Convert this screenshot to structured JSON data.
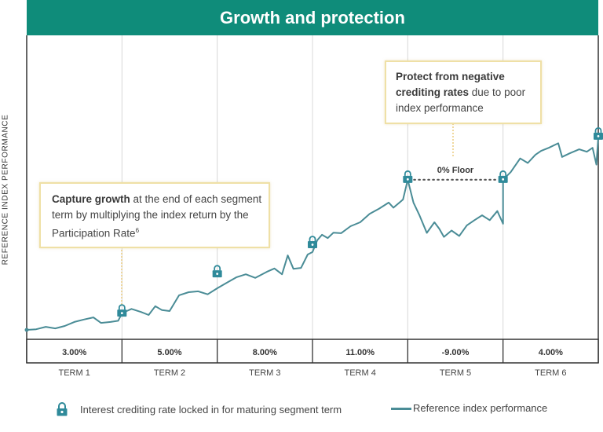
{
  "chart_data": {
    "type": "line",
    "title": "Growth and protection",
    "ylabel": "REFERENCE INDEX PERFORMANCE",
    "xlabel": "",
    "xlim": [
      0,
      6
    ],
    "ylim": [
      0,
      100
    ],
    "grid": "vertical lines at term boundaries",
    "terms": [
      {
        "label": "TERM 1",
        "rate": "3.00%"
      },
      {
        "label": "TERM 2",
        "rate": "5.00%"
      },
      {
        "label": "TERM 3",
        "rate": "8.00%"
      },
      {
        "label": "TERM 4",
        "rate": "11.00%"
      },
      {
        "label": "TERM 5",
        "rate": "-9.00%"
      },
      {
        "label": "TERM 6",
        "rate": "4.00%"
      }
    ],
    "series": [
      {
        "name": "Reference index performance",
        "color": "#4a8c96",
        "points": [
          [
            0.0,
            3.1
          ],
          [
            0.1,
            3.3
          ],
          [
            0.2,
            4.1
          ],
          [
            0.3,
            3.6
          ],
          [
            0.4,
            4.4
          ],
          [
            0.5,
            5.7
          ],
          [
            0.6,
            6.5
          ],
          [
            0.7,
            7.2
          ],
          [
            0.78,
            5.4
          ],
          [
            0.88,
            5.7
          ],
          [
            0.96,
            6.1
          ],
          [
            1.0,
            8.5
          ],
          [
            1.05,
            9.3
          ],
          [
            1.1,
            10.0
          ],
          [
            1.2,
            9.0
          ],
          [
            1.28,
            8.0
          ],
          [
            1.35,
            10.9
          ],
          [
            1.42,
            9.6
          ],
          [
            1.5,
            9.3
          ],
          [
            1.6,
            14.5
          ],
          [
            1.7,
            15.5
          ],
          [
            1.8,
            15.8
          ],
          [
            1.9,
            14.8
          ],
          [
            2.0,
            16.8
          ],
          [
            2.1,
            18.6
          ],
          [
            2.2,
            20.4
          ],
          [
            2.3,
            21.4
          ],
          [
            2.4,
            20.2
          ],
          [
            2.52,
            22.2
          ],
          [
            2.6,
            23.3
          ],
          [
            2.68,
            21.4
          ],
          [
            2.74,
            27.6
          ],
          [
            2.8,
            23.2
          ],
          [
            2.88,
            23.5
          ],
          [
            2.95,
            27.9
          ],
          [
            3.0,
            28.7
          ],
          [
            3.05,
            32.6
          ],
          [
            3.1,
            34.4
          ],
          [
            3.16,
            33.3
          ],
          [
            3.22,
            35.1
          ],
          [
            3.3,
            34.9
          ],
          [
            3.4,
            37.2
          ],
          [
            3.5,
            38.5
          ],
          [
            3.6,
            41.3
          ],
          [
            3.7,
            43.0
          ],
          [
            3.8,
            45.0
          ],
          [
            3.85,
            43.3
          ],
          [
            3.95,
            46.0
          ],
          [
            4.0,
            52.5
          ],
          [
            4.06,
            45.0
          ],
          [
            4.12,
            41.0
          ],
          [
            4.2,
            35.0
          ],
          [
            4.28,
            38.5
          ],
          [
            4.33,
            36.4
          ],
          [
            4.38,
            33.7
          ],
          [
            4.46,
            35.8
          ],
          [
            4.54,
            34.0
          ],
          [
            4.62,
            37.5
          ],
          [
            4.7,
            39.2
          ],
          [
            4.78,
            40.8
          ],
          [
            4.86,
            39.2
          ],
          [
            4.94,
            42.2
          ],
          [
            5.0,
            38.0
          ],
          [
            5.0,
            52.5
          ],
          [
            5.08,
            55.0
          ],
          [
            5.18,
            59.5
          ],
          [
            5.26,
            58.0
          ],
          [
            5.34,
            60.7
          ],
          [
            5.4,
            62.0
          ],
          [
            5.48,
            63.0
          ],
          [
            5.58,
            64.5
          ],
          [
            5.62,
            60.0
          ],
          [
            5.7,
            61.2
          ],
          [
            5.8,
            62.5
          ],
          [
            5.88,
            61.7
          ],
          [
            5.94,
            63.0
          ],
          [
            5.98,
            57.5
          ],
          [
            6.0,
            66.7
          ]
        ]
      }
    ],
    "locks": [
      {
        "term_end": 1,
        "level": 8.5
      },
      {
        "term_end": 2,
        "level": 21.4
      },
      {
        "term_end": 3,
        "level": 31.0
      },
      {
        "term_end": 4,
        "level": 52.5
      },
      {
        "term_end": 5,
        "level": 52.5
      },
      {
        "term_end": 6,
        "level": 66.7
      }
    ],
    "floor": {
      "from_term": 4,
      "to_term": 5,
      "level": 52.5,
      "label": "0% Floor"
    },
    "annotations": [
      {
        "id": "capture-growth",
        "bold": "Capture growth",
        "text": " at the end of each segment term by multiplying the index return by the Participation Rate",
        "superscript": "6",
        "points_to_term": 1
      },
      {
        "id": "protect",
        "bold": "Protect from negative crediting rates",
        "text": " due to poor index performance",
        "points_to_term": 4.5
      }
    ],
    "legend": [
      {
        "symbol": "lock-icon",
        "label": "Interest crediting rate locked in for maturing segment term"
      },
      {
        "symbol": "line",
        "label": "Reference index performance"
      }
    ],
    "colors": {
      "header": "#0f8c7a",
      "line": "#4a8c96",
      "lock": "#2f8a9a",
      "callout_border": "#efe0a6",
      "dotted_leader": "#e8c36a"
    }
  }
}
